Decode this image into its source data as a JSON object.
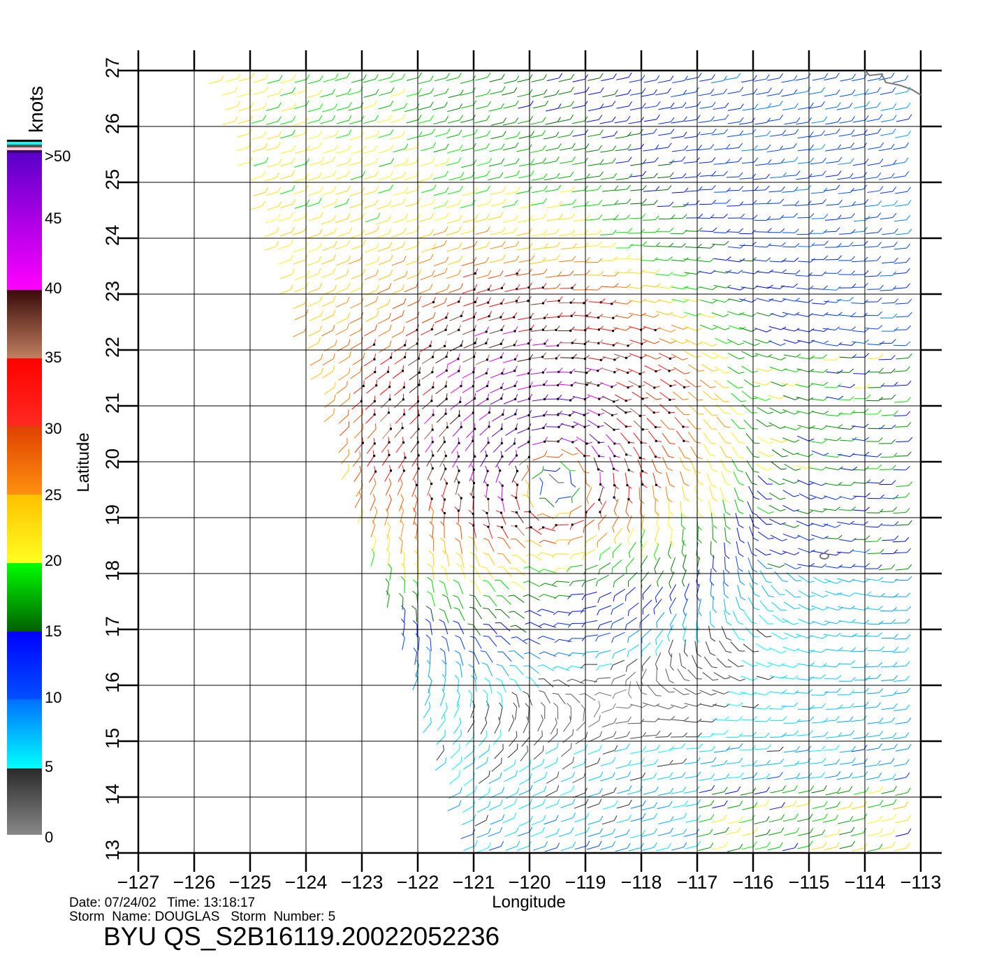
{
  "chart_data": {
    "type": "vector",
    "title": "BYU QS_S2B16119.20022052236",
    "xlabel": "Longitude",
    "ylabel": "Latitude",
    "xlim": [
      -127,
      -113
    ],
    "ylim": [
      13,
      27
    ],
    "xticks": [
      "-127",
      "-126",
      "-125",
      "-124",
      "-123",
      "-122",
      "-121",
      "-120",
      "-119",
      "-118",
      "-117",
      "-116",
      "-115",
      "-114",
      "-113"
    ],
    "yticks": [
      "13",
      "14",
      "15",
      "16",
      "17",
      "18",
      "19",
      "20",
      "21",
      "22",
      "23",
      "24",
      "25",
      "26",
      "27"
    ],
    "grid": true,
    "storm_center_estimate": {
      "lon": -119.6,
      "lat": 19.8,
      "max_wind_knots": 45
    },
    "colorbar": {
      "label": "knots",
      "ticks": [
        "0",
        "5",
        "10",
        "15",
        "20",
        "25",
        "30",
        "35",
        "40",
        "45",
        ">50"
      ],
      "range": [
        0,
        50
      ],
      "stops": [
        {
          "value": 0,
          "color": "#888888"
        },
        {
          "value": 5,
          "color": "#333333"
        },
        {
          "value": 5,
          "color": "#00ffff"
        },
        {
          "value": 10,
          "color": "#0080ff"
        },
        {
          "value": 10,
          "color": "#0060ff"
        },
        {
          "value": 15,
          "color": "#0000ff"
        },
        {
          "value": 15,
          "color": "#006000"
        },
        {
          "value": 20,
          "color": "#00ff00"
        },
        {
          "value": 20,
          "color": "#ffff20"
        },
        {
          "value": 25,
          "color": "#ffc000"
        },
        {
          "value": 25,
          "color": "#ff9010"
        },
        {
          "value": 30,
          "color": "#e04000"
        },
        {
          "value": 30,
          "color": "#ff2020"
        },
        {
          "value": 35,
          "color": "#ff0000"
        },
        {
          "value": 35,
          "color": "#c08060"
        },
        {
          "value": 40,
          "color": "#401010"
        },
        {
          "value": 40,
          "color": "#ff00ff"
        },
        {
          "value": 50,
          "color": "#6000c0"
        }
      ]
    }
  },
  "info": {
    "date_line": "Date: 07/24/02   Time: 13:18:17",
    "storm_line": "Storm  Name: DOUGLAS   Storm  Number: 5"
  }
}
